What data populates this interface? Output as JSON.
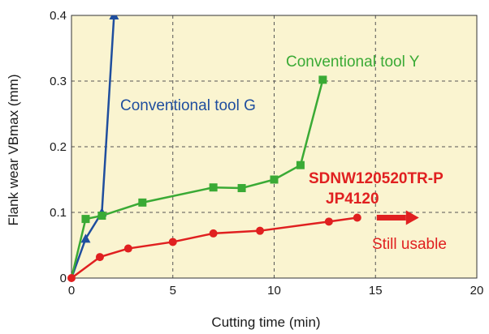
{
  "chart_data": {
    "type": "line",
    "xlabel": "Cutting time (min)",
    "ylabel": "Flank wear VBmax (mm)",
    "xlim": [
      0,
      20
    ],
    "ylim": [
      0,
      0.4
    ],
    "x_ticks": [
      "0",
      "5",
      "10",
      "15",
      "20"
    ],
    "y_ticks": [
      "0",
      "0.1",
      "0.2",
      "0.3",
      "0.4"
    ],
    "grid": true,
    "background_color": "#faf4d0",
    "series": [
      {
        "name": "Conventional tool G",
        "color": "#1f4e9e",
        "marker": "triangle",
        "points": [
          [
            0,
            0
          ],
          [
            0.7,
            0.06
          ],
          [
            1.5,
            0.1
          ],
          [
            2.1,
            0.4
          ]
        ]
      },
      {
        "name": "Conventional tool Y",
        "color": "#3aaa35",
        "marker": "square",
        "points": [
          [
            0,
            0
          ],
          [
            0.7,
            0.09
          ],
          [
            1.5,
            0.095
          ],
          [
            3.5,
            0.115
          ],
          [
            7.0,
            0.138
          ],
          [
            8.4,
            0.137
          ],
          [
            10.0,
            0.15
          ],
          [
            11.3,
            0.172
          ],
          [
            12.4,
            0.302
          ]
        ]
      },
      {
        "name": "SDNW120520TR-P",
        "color": "#e02020",
        "marker": "circle",
        "points": [
          [
            0,
            0
          ],
          [
            1.4,
            0.032
          ],
          [
            2.8,
            0.045
          ],
          [
            5.0,
            0.055
          ],
          [
            7.0,
            0.068
          ],
          [
            9.3,
            0.072
          ],
          [
            12.7,
            0.086
          ],
          [
            14.1,
            0.092
          ]
        ]
      }
    ],
    "annotations": {
      "tool_g_label": "Conventional tool G",
      "tool_y_label": "Conventional tool Y",
      "sdnw_label_line1": "SDNW120520TR-P",
      "sdnw_label_line2": "JP4120",
      "still_usable": "Still usable"
    }
  }
}
